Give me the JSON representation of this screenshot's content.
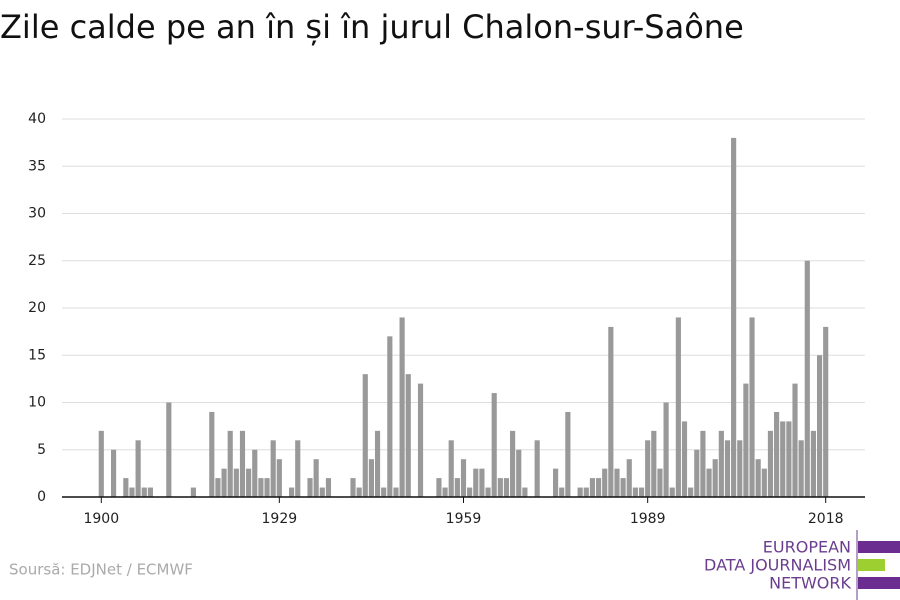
{
  "chart_data": {
    "type": "bar",
    "title": "Zile calde pe an în și în jurul Chalon-sur-Saône",
    "source": "Soursă: EDJNet / ECMWF",
    "logo": [
      "EUROPEAN",
      "DATA JOURNALISM",
      "NETWORK"
    ],
    "color": "#999999",
    "grid": true,
    "x": [
      1900,
      1901,
      1902,
      1903,
      1904,
      1905,
      1906,
      1907,
      1908,
      1909,
      1910,
      1911,
      1912,
      1913,
      1914,
      1915,
      1916,
      1917,
      1918,
      1919,
      1920,
      1921,
      1922,
      1923,
      1924,
      1925,
      1926,
      1927,
      1928,
      1929,
      1930,
      1931,
      1932,
      1933,
      1934,
      1935,
      1936,
      1937,
      1938,
      1939,
      1940,
      1941,
      1942,
      1943,
      1944,
      1945,
      1946,
      1947,
      1948,
      1949,
      1950,
      1951,
      1952,
      1953,
      1954,
      1955,
      1956,
      1957,
      1958,
      1959,
      1960,
      1961,
      1962,
      1963,
      1964,
      1965,
      1966,
      1967,
      1968,
      1969,
      1970,
      1971,
      1972,
      1973,
      1974,
      1975,
      1976,
      1977,
      1978,
      1979,
      1980,
      1981,
      1982,
      1983,
      1984,
      1985,
      1986,
      1987,
      1988,
      1989,
      1990,
      1991,
      1992,
      1993,
      1994,
      1995,
      1996,
      1997,
      1998,
      1999,
      2000,
      2001,
      2002,
      2003,
      2004,
      2005,
      2006,
      2007,
      2008,
      2009,
      2010,
      2011,
      2012,
      2013,
      2014,
      2015,
      2016,
      2017,
      2018
    ],
    "values": [
      7,
      0,
      5,
      0,
      2,
      1,
      6,
      1,
      1,
      0,
      0,
      10,
      0,
      0,
      0,
      1,
      0,
      0,
      9,
      2,
      3,
      7,
      3,
      7,
      3,
      5,
      2,
      2,
      6,
      4,
      0,
      1,
      6,
      0,
      2,
      4,
      1,
      2,
      0,
      0,
      0,
      2,
      1,
      13,
      4,
      7,
      1,
      17,
      1,
      19,
      13,
      0,
      12,
      0,
      0,
      2,
      1,
      6,
      2,
      4,
      1,
      3,
      3,
      1,
      11,
      2,
      2,
      7,
      5,
      1,
      0,
      6,
      0,
      0,
      3,
      1,
      9,
      0,
      1,
      1,
      2,
      2,
      3,
      18,
      3,
      2,
      4,
      1,
      1,
      6,
      7,
      3,
      10,
      1,
      19,
      8,
      1,
      5,
      7,
      3,
      4,
      7,
      6,
      38,
      6,
      12,
      19,
      4,
      3,
      7,
      9,
      8,
      8,
      12,
      6,
      25,
      7,
      15,
      18
    ],
    "xlim": [
      1893.6,
      2024.4
    ],
    "xticks": [
      1900,
      1929,
      1959,
      1989,
      2018
    ],
    "ylim": [
      0,
      40
    ],
    "yticks": [
      0,
      5,
      10,
      15,
      20,
      25,
      30,
      35,
      40
    ]
  }
}
